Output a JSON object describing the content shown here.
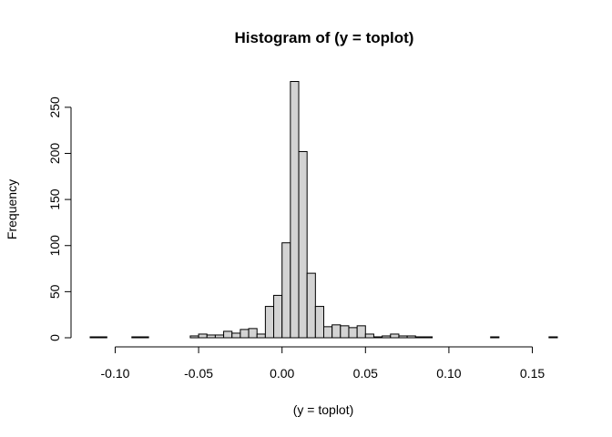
{
  "chart_data": {
    "type": "bar",
    "title": "Histogram of (y = toplot)",
    "xlabel": "(y = toplot)",
    "ylabel": "Frequency",
    "xlim": [
      -0.115,
      0.165
    ],
    "ylim": [
      0,
      278
    ],
    "bin_width": 0.005,
    "bins_start": -0.115,
    "values": [
      1,
      1,
      0,
      0,
      0,
      1,
      1,
      0,
      0,
      0,
      0,
      0,
      2,
      4,
      3,
      3,
      7,
      5,
      9,
      10,
      4,
      34,
      46,
      103,
      278,
      202,
      70,
      34,
      12,
      14,
      13,
      11,
      13,
      4,
      1,
      2,
      4,
      2,
      2,
      1,
      1,
      0,
      0,
      0,
      0,
      0,
      0,
      0,
      1,
      0,
      0,
      0,
      0,
      0,
      0,
      1,
      0
    ],
    "x_ticks": [
      -0.1,
      -0.05,
      0.0,
      0.05,
      0.1,
      0.15
    ],
    "x_tick_labels": [
      "-0.10",
      "-0.05",
      "0.00",
      "0.05",
      "0.10",
      "0.15"
    ],
    "y_ticks": [
      0,
      50,
      100,
      150,
      200,
      250
    ],
    "y_tick_labels": [
      "0",
      "50",
      "100",
      "150",
      "200",
      "250"
    ],
    "bar_fill": "#d3d3d3",
    "bar_stroke": "#000000",
    "grid": false
  }
}
